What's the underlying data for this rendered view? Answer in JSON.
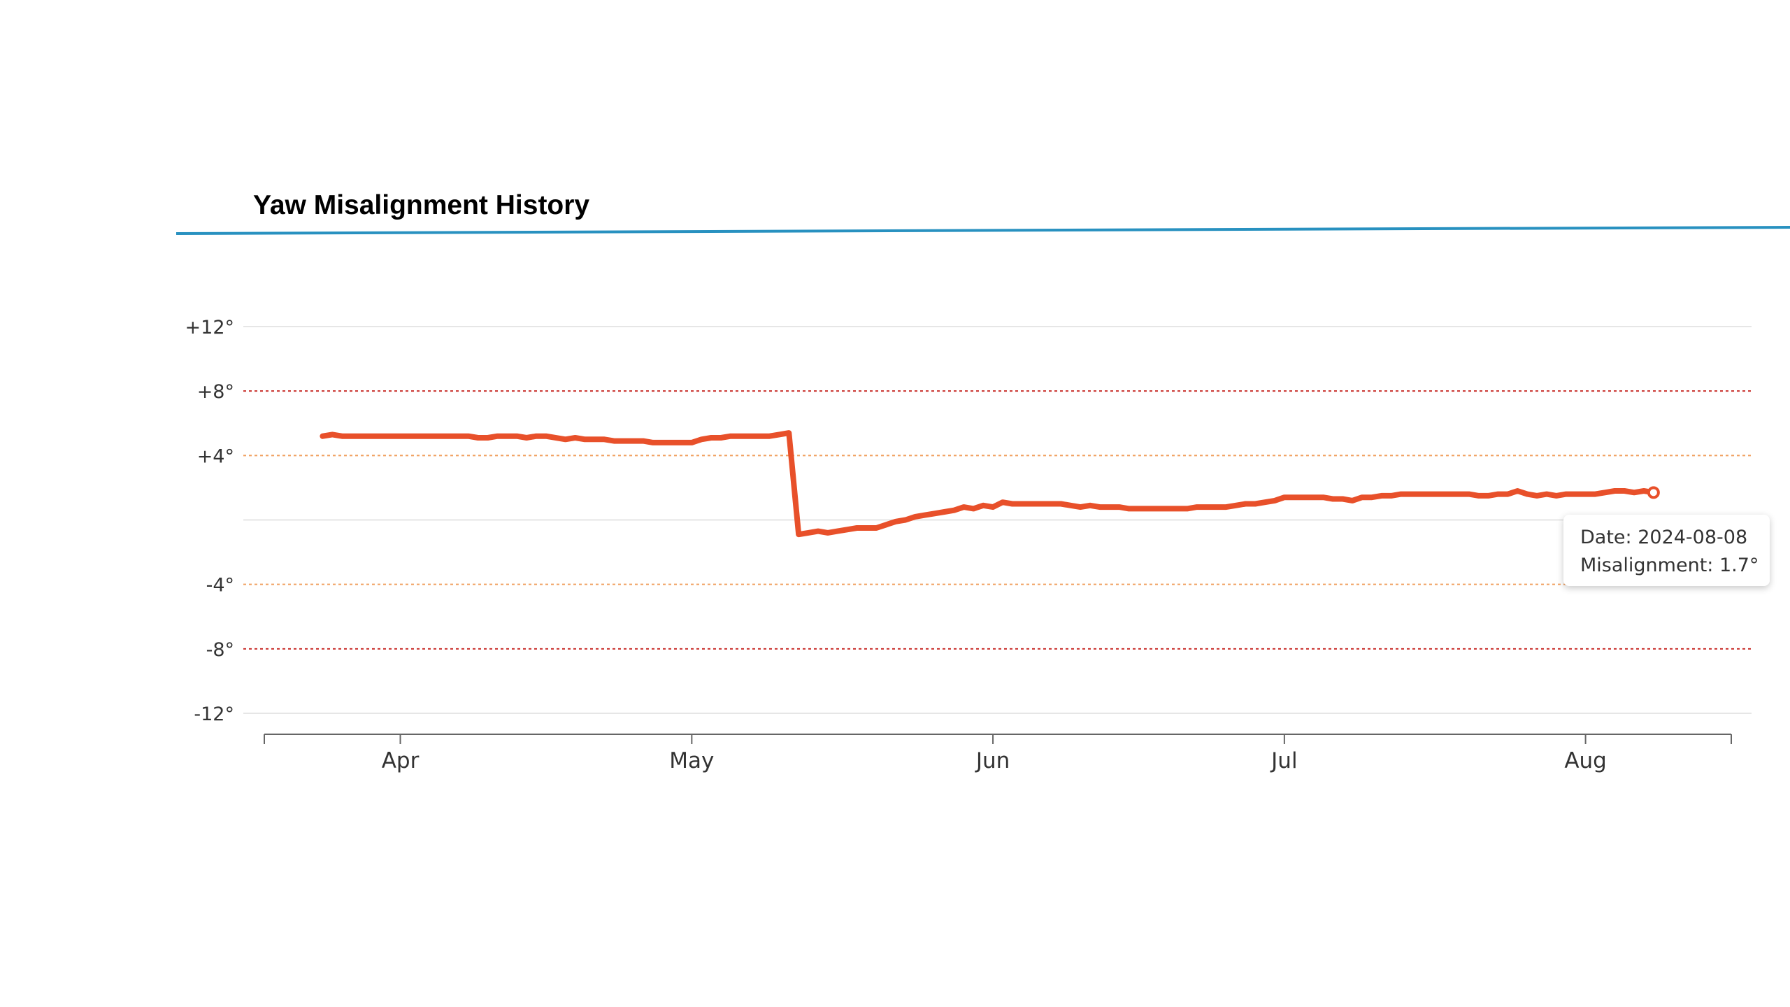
{
  "title": "Yaw Misalignment History",
  "tooltip": {
    "date_line": "Date: 2024-08-08",
    "value_line": "Misalignment: 1.7°"
  },
  "chart_data": {
    "type": "line",
    "title": "Yaw Misalignment History",
    "xlabel": "",
    "ylabel": "",
    "x_range": [
      "2024-03-18",
      "2024-08-16"
    ],
    "ylim": [
      -12,
      12
    ],
    "y_ticks": [
      {
        "value": 12,
        "label": "+12°"
      },
      {
        "value": 8,
        "label": "+8°"
      },
      {
        "value": 4,
        "label": "+4°"
      },
      {
        "value": -4,
        "label": "-4°"
      },
      {
        "value": -8,
        "label": "-8°"
      },
      {
        "value": -12,
        "label": "-12°"
      }
    ],
    "x_ticks": [
      {
        "date": "2024-04-01",
        "label": "Apr"
      },
      {
        "date": "2024-05-01",
        "label": "May"
      },
      {
        "date": "2024-06-01",
        "label": "Jun"
      },
      {
        "date": "2024-07-01",
        "label": "Jul"
      },
      {
        "date": "2024-08-01",
        "label": "Aug"
      }
    ],
    "reference_lines": [
      {
        "value": 8,
        "level": "critical"
      },
      {
        "value": 4,
        "level": "warning"
      },
      {
        "value": 0,
        "level": "zero"
      },
      {
        "value": -4,
        "level": "warning"
      },
      {
        "value": -8,
        "level": "critical"
      }
    ],
    "grid": true,
    "series": [
      {
        "color": "#e8502a",
        "points": [
          {
            "x": "2024-03-24",
            "y": 5.2
          },
          {
            "x": "2024-03-25",
            "y": 5.3
          },
          {
            "x": "2024-03-26",
            "y": 5.2
          },
          {
            "x": "2024-03-27",
            "y": 5.2
          },
          {
            "x": "2024-03-29",
            "y": 5.2
          },
          {
            "x": "2024-03-31",
            "y": 5.2
          },
          {
            "x": "2024-04-02",
            "y": 5.2
          },
          {
            "x": "2024-04-04",
            "y": 5.2
          },
          {
            "x": "2024-04-06",
            "y": 5.2
          },
          {
            "x": "2024-04-08",
            "y": 5.2
          },
          {
            "x": "2024-04-09",
            "y": 5.1
          },
          {
            "x": "2024-04-10",
            "y": 5.1
          },
          {
            "x": "2024-04-11",
            "y": 5.2
          },
          {
            "x": "2024-04-13",
            "y": 5.2
          },
          {
            "x": "2024-04-14",
            "y": 5.1
          },
          {
            "x": "2024-04-15",
            "y": 5.2
          },
          {
            "x": "2024-04-16",
            "y": 5.2
          },
          {
            "x": "2024-04-18",
            "y": 5.0
          },
          {
            "x": "2024-04-19",
            "y": 5.1
          },
          {
            "x": "2024-04-20",
            "y": 5.0
          },
          {
            "x": "2024-04-22",
            "y": 5.0
          },
          {
            "x": "2024-04-23",
            "y": 4.9
          },
          {
            "x": "2024-04-26",
            "y": 4.9
          },
          {
            "x": "2024-04-27",
            "y": 4.8
          },
          {
            "x": "2024-04-30",
            "y": 4.8
          },
          {
            "x": "2024-05-01",
            "y": 4.8
          },
          {
            "x": "2024-05-02",
            "y": 5.0
          },
          {
            "x": "2024-05-03",
            "y": 5.1
          },
          {
            "x": "2024-05-04",
            "y": 5.1
          },
          {
            "x": "2024-05-05",
            "y": 5.2
          },
          {
            "x": "2024-05-07",
            "y": 5.2
          },
          {
            "x": "2024-05-09",
            "y": 5.2
          },
          {
            "x": "2024-05-10",
            "y": 5.3
          },
          {
            "x": "2024-05-11",
            "y": 5.4
          },
          {
            "x": "2024-05-12",
            "y": -0.9
          },
          {
            "x": "2024-05-13",
            "y": -0.8
          },
          {
            "x": "2024-05-14",
            "y": -0.7
          },
          {
            "x": "2024-05-15",
            "y": -0.8
          },
          {
            "x": "2024-05-16",
            "y": -0.7
          },
          {
            "x": "2024-05-17",
            "y": -0.6
          },
          {
            "x": "2024-05-18",
            "y": -0.5
          },
          {
            "x": "2024-05-19",
            "y": -0.5
          },
          {
            "x": "2024-05-20",
            "y": -0.5
          },
          {
            "x": "2024-05-21",
            "y": -0.3
          },
          {
            "x": "2024-05-22",
            "y": -0.1
          },
          {
            "x": "2024-05-23",
            "y": 0.0
          },
          {
            "x": "2024-05-24",
            "y": 0.2
          },
          {
            "x": "2024-05-25",
            "y": 0.3
          },
          {
            "x": "2024-05-26",
            "y": 0.4
          },
          {
            "x": "2024-05-27",
            "y": 0.5
          },
          {
            "x": "2024-05-28",
            "y": 0.6
          },
          {
            "x": "2024-05-29",
            "y": 0.8
          },
          {
            "x": "2024-05-30",
            "y": 0.7
          },
          {
            "x": "2024-05-31",
            "y": 0.9
          },
          {
            "x": "2024-06-01",
            "y": 0.8
          },
          {
            "x": "2024-06-02",
            "y": 1.1
          },
          {
            "x": "2024-06-03",
            "y": 1.0
          },
          {
            "x": "2024-06-05",
            "y": 1.0
          },
          {
            "x": "2024-06-07",
            "y": 1.0
          },
          {
            "x": "2024-06-08",
            "y": 1.0
          },
          {
            "x": "2024-06-09",
            "y": 0.9
          },
          {
            "x": "2024-06-10",
            "y": 0.8
          },
          {
            "x": "2024-06-11",
            "y": 0.9
          },
          {
            "x": "2024-06-12",
            "y": 0.8
          },
          {
            "x": "2024-06-14",
            "y": 0.8
          },
          {
            "x": "2024-06-15",
            "y": 0.7
          },
          {
            "x": "2024-06-17",
            "y": 0.7
          },
          {
            "x": "2024-06-19",
            "y": 0.7
          },
          {
            "x": "2024-06-21",
            "y": 0.7
          },
          {
            "x": "2024-06-22",
            "y": 0.8
          },
          {
            "x": "2024-06-24",
            "y": 0.8
          },
          {
            "x": "2024-06-25",
            "y": 0.8
          },
          {
            "x": "2024-06-26",
            "y": 0.9
          },
          {
            "x": "2024-06-27",
            "y": 1.0
          },
          {
            "x": "2024-06-28",
            "y": 1.0
          },
          {
            "x": "2024-06-29",
            "y": 1.1
          },
          {
            "x": "2024-06-30",
            "y": 1.2
          },
          {
            "x": "2024-07-01",
            "y": 1.4
          },
          {
            "x": "2024-07-03",
            "y": 1.4
          },
          {
            "x": "2024-07-05",
            "y": 1.4
          },
          {
            "x": "2024-07-06",
            "y": 1.3
          },
          {
            "x": "2024-07-07",
            "y": 1.3
          },
          {
            "x": "2024-07-08",
            "y": 1.2
          },
          {
            "x": "2024-07-09",
            "y": 1.4
          },
          {
            "x": "2024-07-10",
            "y": 1.4
          },
          {
            "x": "2024-07-11",
            "y": 1.5
          },
          {
            "x": "2024-07-12",
            "y": 1.5
          },
          {
            "x": "2024-07-13",
            "y": 1.6
          },
          {
            "x": "2024-07-15",
            "y": 1.6
          },
          {
            "x": "2024-07-17",
            "y": 1.6
          },
          {
            "x": "2024-07-19",
            "y": 1.6
          },
          {
            "x": "2024-07-20",
            "y": 1.6
          },
          {
            "x": "2024-07-21",
            "y": 1.5
          },
          {
            "x": "2024-07-22",
            "y": 1.5
          },
          {
            "x": "2024-07-23",
            "y": 1.6
          },
          {
            "x": "2024-07-24",
            "y": 1.6
          },
          {
            "x": "2024-07-25",
            "y": 1.8
          },
          {
            "x": "2024-07-26",
            "y": 1.6
          },
          {
            "x": "2024-07-27",
            "y": 1.5
          },
          {
            "x": "2024-07-28",
            "y": 1.6
          },
          {
            "x": "2024-07-29",
            "y": 1.5
          },
          {
            "x": "2024-07-30",
            "y": 1.6
          },
          {
            "x": "2024-08-01",
            "y": 1.6
          },
          {
            "x": "2024-08-02",
            "y": 1.6
          },
          {
            "x": "2024-08-03",
            "y": 1.7
          },
          {
            "x": "2024-08-04",
            "y": 1.8
          },
          {
            "x": "2024-08-05",
            "y": 1.8
          },
          {
            "x": "2024-08-06",
            "y": 1.7
          },
          {
            "x": "2024-08-07",
            "y": 1.8
          },
          {
            "x": "2024-08-08",
            "y": 1.7
          }
        ]
      }
    ],
    "highlighted_point": {
      "x": "2024-08-08",
      "y": 1.7
    }
  }
}
